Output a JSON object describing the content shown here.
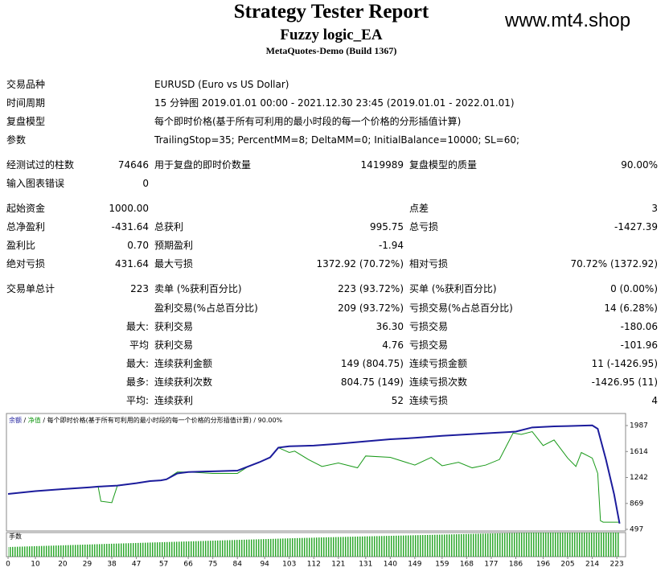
{
  "header": {
    "title": "Strategy Tester Report",
    "subtitle": "Fuzzy logic_EA",
    "server": "MetaQuotes-Demo (Build 1367)",
    "watermark": "www.mt4.shop"
  },
  "info": [
    [
      "交易品种",
      "EURUSD (Euro vs US Dollar)"
    ],
    [
      "时间周期",
      "15 分钟图 2019.01.01 00:00 - 2021.12.30 23:45 (2019.01.01 - 2022.01.01)"
    ],
    [
      "复盘模型",
      "每个即时价格(基于所有可利用的最小时段的每一个价格的分形插值计算)"
    ],
    [
      "参数",
      "TrailingStop=35; PercentMM=8; DeltaMM=0; InitialBalance=10000; SL=60;"
    ]
  ],
  "stats": [
    [
      "经测试过的柱数",
      "74646",
      "用于复盘的即时价数量",
      "1419989",
      "复盘模型的质量",
      "90.00%"
    ],
    [
      "输入图表错误",
      "0",
      null,
      null,
      null,
      null
    ],
    [
      "起始资金",
      "1000.00",
      null,
      null,
      "点差",
      "3"
    ],
    [
      "总净盈利",
      "-431.64",
      "总获利",
      "995.75",
      "总亏损",
      "-1427.39"
    ],
    [
      "盈利比",
      "0.70",
      "预期盈利",
      "-1.94",
      null,
      null
    ],
    [
      "绝对亏损",
      "431.64",
      "最大亏损",
      "1372.92 (70.72%)",
      "相对亏损",
      "70.72% (1372.92)"
    ],
    [
      "交易单总计",
      "223",
      "卖单 (%获利百分比)",
      "223 (93.72%)",
      "买单 (%获利百分比)",
      "0 (0.00%)"
    ],
    [
      null,
      null,
      "盈利交易(%占总百分比)",
      "209 (93.72%)",
      "亏损交易(%占总百分比)",
      "14 (6.28%)"
    ],
    [
      null,
      "最大:",
      "获利交易",
      "36.30",
      "亏损交易",
      "-180.06"
    ],
    [
      null,
      "平均",
      "获利交易",
      "4.76",
      "亏损交易",
      "-101.96"
    ],
    [
      null,
      "最大:",
      "连续获利金额",
      "149 (804.75)",
      "连续亏损金额",
      "11 (-1426.95)"
    ],
    [
      null,
      "最多:",
      "连续获利次数",
      "804.75 (149)",
      "连续亏损次数",
      "-1426.95 (11)"
    ],
    [
      null,
      "平均:",
      "连续获利",
      "52",
      "连续亏损",
      "4"
    ]
  ],
  "chart_data": {
    "type": "line",
    "legend": {
      "separator": "/",
      "model": "每个即时价格(基于所有可利用的最小时段的每一个价格的分形插值计算)",
      "quality": "90.00%"
    },
    "volume_label": "手数",
    "xlim": [
      -0.6,
      226.2
    ],
    "xticks": [
      0,
      10,
      20,
      29,
      38,
      47,
      57,
      66,
      75,
      84,
      94,
      103,
      112,
      121,
      131,
      140,
      149,
      159,
      168,
      177,
      186,
      196,
      205,
      214,
      223
    ],
    "ylim": [
      474,
      2160
    ],
    "yticks": [
      497,
      869,
      1242,
      1614,
      1987
    ],
    "series": [
      {
        "name": "余额",
        "color": "#1c1c9c",
        "x": [
          0,
          10,
          20,
          30,
          33,
          40,
          47,
          52,
          56,
          58,
          62,
          66,
          75,
          84,
          88,
          92,
          96,
          99,
          103,
          112,
          121,
          131,
          140,
          149,
          159,
          168,
          177,
          186,
          192,
          200,
          205,
          210,
          214,
          216,
          219,
          222,
          224
        ],
        "values": [
          1005,
          1045,
          1075,
          1100,
          1110,
          1125,
          1160,
          1190,
          1200,
          1215,
          1300,
          1320,
          1330,
          1340,
          1400,
          1460,
          1530,
          1670,
          1690,
          1700,
          1725,
          1760,
          1790,
          1810,
          1840,
          1860,
          1880,
          1900,
          1960,
          1975,
          1980,
          1985,
          1990,
          1940,
          1500,
          1000,
          580
        ]
      },
      {
        "name": "净值",
        "color": "#1a9a1a",
        "x": [
          0,
          10,
          20,
          30,
          33,
          34,
          38,
          40,
          47,
          52,
          56,
          58,
          62,
          66,
          75,
          84,
          88,
          92,
          96,
          99,
          103,
          105,
          110,
          115,
          121,
          128,
          131,
          140,
          149,
          155,
          159,
          165,
          170,
          175,
          180,
          185,
          188,
          192,
          196,
          200,
          205,
          208,
          210,
          214,
          216,
          217,
          218,
          220,
          224
        ],
        "values": [
          1005,
          1045,
          1075,
          1100,
          1110,
          900,
          880,
          1120,
          1160,
          1190,
          1200,
          1215,
          1320,
          1320,
          1300,
          1300,
          1400,
          1460,
          1530,
          1670,
          1600,
          1620,
          1500,
          1400,
          1450,
          1380,
          1550,
          1530,
          1420,
          1530,
          1410,
          1460,
          1380,
          1420,
          1500,
          1880,
          1860,
          1900,
          1700,
          1780,
          1520,
          1400,
          1600,
          1520,
          1300,
          620,
          600,
          600,
          600
        ]
      }
    ]
  }
}
